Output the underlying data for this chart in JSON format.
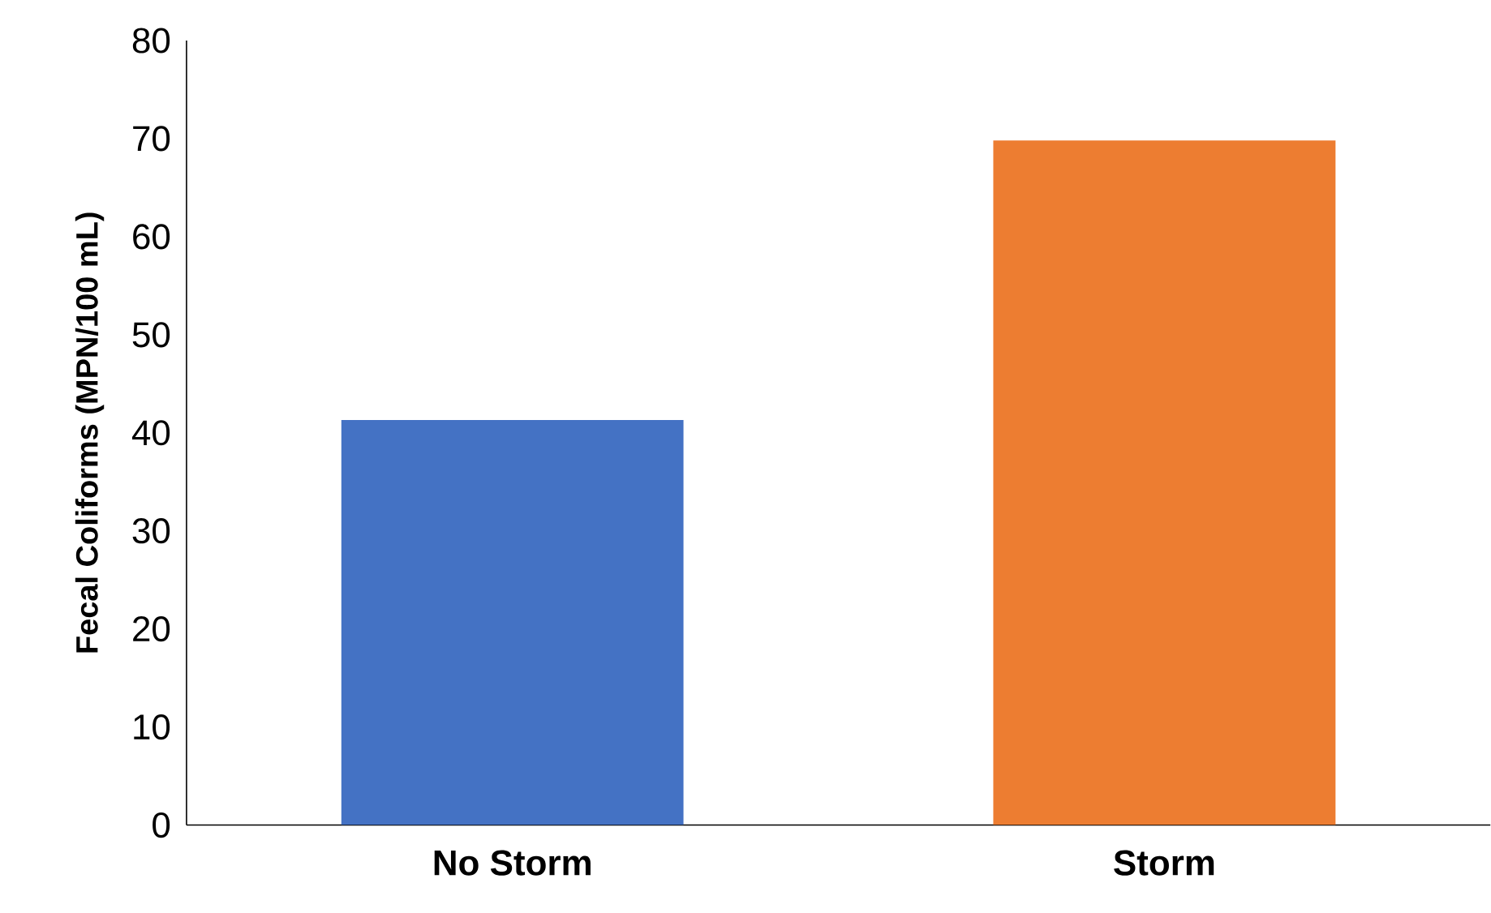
{
  "chart_data": {
    "type": "bar",
    "ylabel": "Fecal Coliforms (MPN/100 mL)",
    "categories": [
      "No Storm",
      "Storm"
    ],
    "values": [
      41.3,
      69.8
    ],
    "colors": [
      "#4472c4",
      "#ed7d31"
    ],
    "ylim": [
      0,
      80
    ],
    "yticks": [
      0,
      10,
      20,
      30,
      40,
      50,
      60,
      70,
      80
    ],
    "grid": false
  }
}
